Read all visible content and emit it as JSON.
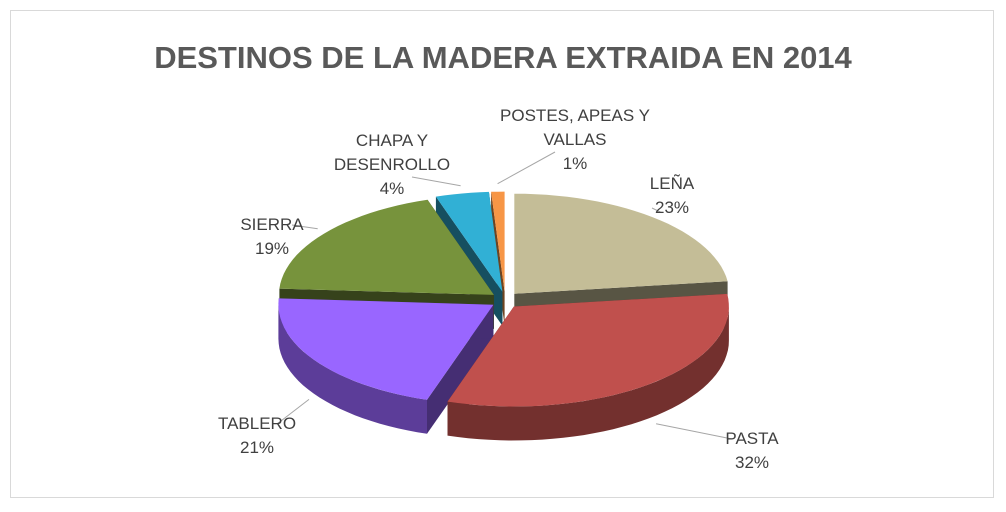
{
  "chart_data": {
    "type": "pie3d",
    "title": "DESTINOS DE LA MADERA EXTRAIDA EN 2014",
    "categories": [
      "LEÑA",
      "PASTA",
      "TABLERO",
      "SIERRA",
      "CHAPA Y DESENROLLO",
      "POSTES, APEAS Y VALLAS"
    ],
    "values": [
      23,
      32,
      21,
      19,
      4,
      1
    ],
    "value_labels": [
      "23%",
      "32%",
      "21%",
      "19%",
      "4%",
      "1%"
    ],
    "colors": [
      "#c4bd97",
      "#c0504d",
      "#9966ff",
      "#77933c",
      "#31b0d5",
      "#f79646"
    ]
  }
}
